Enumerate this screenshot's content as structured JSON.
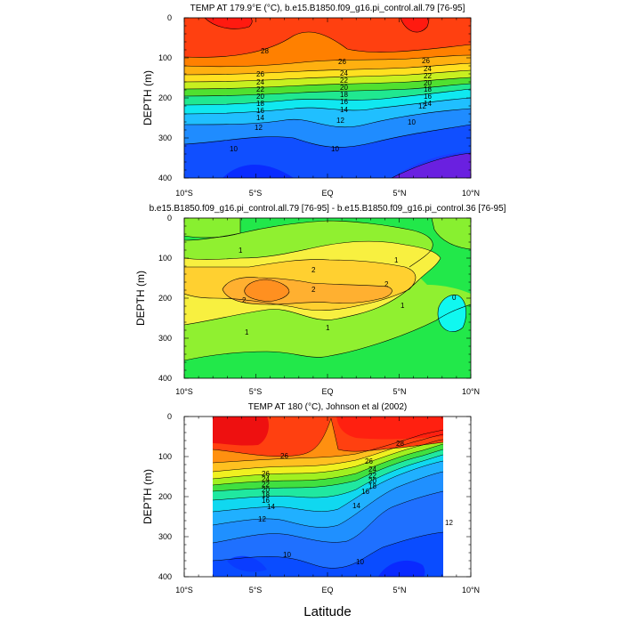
{
  "chart_data": [
    {
      "type": "contour",
      "title": "TEMP AT 179.9°E (°C), b.e15.B1850.f09_g16.pi_control.all.79 [76-95]",
      "ylabel": "DEPTH (m)",
      "x_ticks": [
        "10°S",
        "5°S",
        "EQ",
        "5°N",
        "10°N"
      ],
      "y_ticks": [
        "0",
        "100",
        "200",
        "300",
        "400"
      ],
      "xlim": [
        -10,
        10
      ],
      "ylim": [
        400,
        0
      ],
      "contour_labels": [
        "28",
        "26",
        "24",
        "22",
        "20",
        "18",
        "16",
        "14",
        "12",
        "10",
        "26",
        "24",
        "22",
        "20",
        "18",
        "16",
        "14",
        "12",
        "10",
        "26",
        "24",
        "22",
        "20",
        "18",
        "16",
        "14",
        "12",
        "10"
      ]
    },
    {
      "type": "contour",
      "title": "b.e15.B1850.f09_g16.pi_control.all.79 [76-95] - b.e15.B1850.f09_g16.pi_control.36 [76-95]",
      "ylabel": "DEPTH (m)",
      "x_ticks": [
        "10°S",
        "5°S",
        "EQ",
        "5°N",
        "10°N"
      ],
      "y_ticks": [
        "0",
        "100",
        "200",
        "300",
        "400"
      ],
      "xlim": [
        -10,
        10
      ],
      "ylim": [
        400,
        0
      ],
      "contour_labels": [
        "1",
        "2",
        "2",
        "2",
        "2",
        "1",
        "1",
        "1",
        "0",
        "1"
      ]
    },
    {
      "type": "contour",
      "title": "TEMP AT 180 (°C), Johnson et al (2002)",
      "ylabel": "DEPTH (m)",
      "xlabel": "Latitude",
      "x_ticks": [
        "10°S",
        "5°S",
        "EQ",
        "5°N",
        "10°N"
      ],
      "y_ticks": [
        "0",
        "100",
        "200",
        "300",
        "400"
      ],
      "xlim": [
        -10,
        10
      ],
      "ylim": [
        400,
        0
      ],
      "data_xrange": [
        -8,
        8
      ],
      "contour_labels": [
        "28",
        "26",
        "26",
        "24",
        "22",
        "20",
        "18",
        "16",
        "14",
        "12",
        "10",
        "26",
        "24",
        "22",
        "20",
        "18",
        "16",
        "14",
        "12",
        "10"
      ]
    }
  ],
  "colors": {
    "red": "#ff1a10",
    "orange": "#ff8c00",
    "yellow": "#ffff40",
    "green": "#2ee04a",
    "cyan": "#10f0f0",
    "blue": "#1060ff",
    "purple": "#6a20e0"
  }
}
